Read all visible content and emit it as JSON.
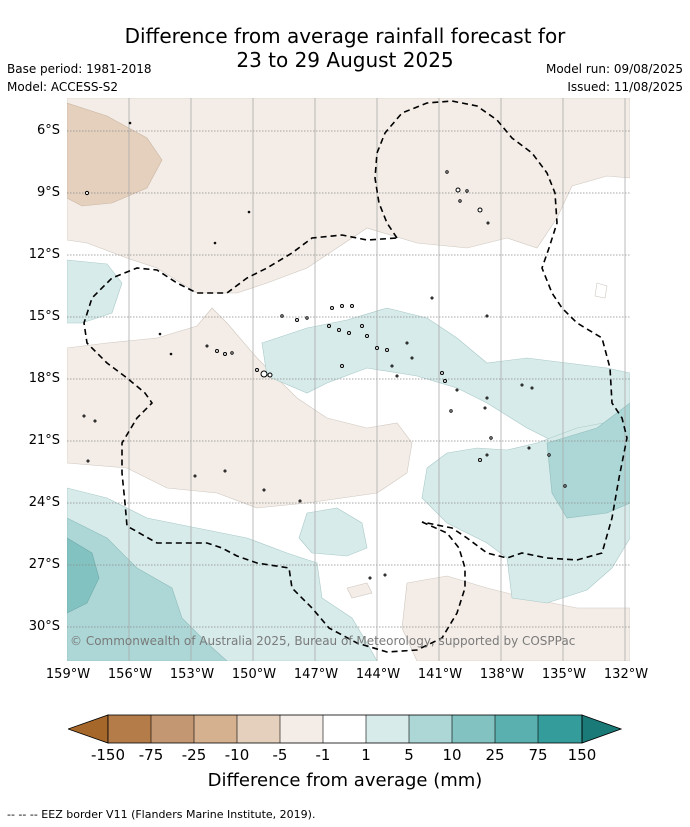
{
  "title_line1": "Difference from average rainfall forecast for",
  "title_line2": "23 to 29 August 2025",
  "meta_left": [
    "Base period: 1981-2018",
    "Model: ACCESS-S2"
  ],
  "meta_right": [
    "Model run: 09/08/2025",
    "Issued: 11/08/2025"
  ],
  "lat_labels": [
    "6°S",
    "9°S",
    "12°S",
    "15°S",
    "18°S",
    "21°S",
    "24°S",
    "27°S",
    "30°S"
  ],
  "lon_labels": [
    "159°W",
    "156°W",
    "153°W",
    "150°W",
    "147°W",
    "144°W",
    "141°W",
    "138°W",
    "135°W",
    "132°W"
  ],
  "credit": "© Commonwealth of Australia 2025, Bureau of Meteorology, supported by COSPPac",
  "colorbar": {
    "labels": [
      "-150",
      "-75",
      "-25",
      "-10",
      "-5",
      "-1",
      "1",
      "5",
      "10",
      "25",
      "75",
      "150"
    ],
    "colors": [
      "#a5672a",
      "#b47c48",
      "#c39772",
      "#d5b18f",
      "#e4d0bd",
      "#f4ede7",
      "#ffffff",
      "#d6ebea",
      "#acd7d6",
      "#82c2c1",
      "#5ab0ae",
      "#349d9b",
      "#1a7a78"
    ],
    "title": "Difference from average (mm)"
  },
  "footer": "-- -- -- EEZ border V11 (Flanders Marine Institute, 2019)."
}
